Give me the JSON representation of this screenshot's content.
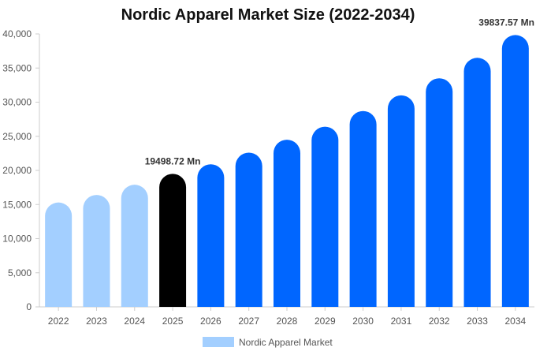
{
  "chart_data": {
    "type": "bar",
    "title": "Nordic Apparel Market Size (2022-2034)",
    "xlabel": "",
    "ylabel": "",
    "categories": [
      "2022",
      "2023",
      "2024",
      "2025",
      "2026",
      "2027",
      "2028",
      "2029",
      "2030",
      "2031",
      "2032",
      "2033",
      "2034"
    ],
    "series": [
      {
        "name": "Nordic Apparel Market",
        "values": [
          15300,
          16400,
          17900,
          19498.72,
          20900,
          22600,
          24500,
          26400,
          28700,
          31000,
          33500,
          36500,
          39837.57
        ]
      }
    ],
    "ylim": [
      0,
      40000
    ],
    "yticks": [
      "0",
      "5,000",
      "10,000",
      "15,000",
      "20,000",
      "25,000",
      "30,000",
      "35,000",
      "40,000"
    ],
    "data_labels": [
      {
        "index": 3,
        "text": "19498.72 Mn"
      },
      {
        "index": 12,
        "text": "39837.57 Mn"
      }
    ],
    "colors": {
      "historical": "#a3cfff",
      "base_year": "#000000",
      "forecast": "#0066ff",
      "legend_swatch": "#a3cfff",
      "axis": "#cccccc"
    },
    "color_groups": [
      "historical",
      "historical",
      "historical",
      "base_year",
      "forecast",
      "forecast",
      "forecast",
      "forecast",
      "forecast",
      "forecast",
      "forecast",
      "forecast",
      "forecast"
    ],
    "grid": false,
    "legend": "bottom-center"
  }
}
